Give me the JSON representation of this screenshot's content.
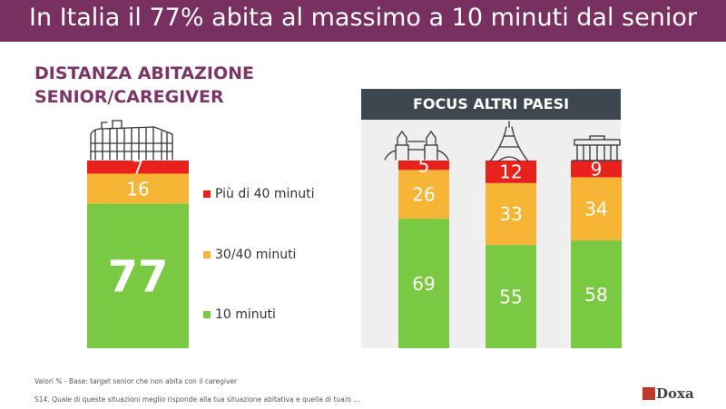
{
  "header": {
    "title": "In Italia il 77% abita al massimo a 10 minuti dal senior"
  },
  "italy": {
    "title_line1": "DISTANZA ABITAZIONE",
    "title_line2": "SENIOR/CAREGIVER"
  },
  "focus": {
    "title": "FOCUS ALTRI PAESI"
  },
  "legend": [
    {
      "label": "Più di 40 minuti",
      "color": "#e8211c"
    },
    {
      "label": "30/40 minuti",
      "color": "#f6b534"
    },
    {
      "label": "10 minuti",
      "color": "#7ac943"
    }
  ],
  "chart_data": {
    "type": "bar",
    "stacked": true,
    "unit": "%",
    "categories": [
      "Italia",
      "Regno Unito",
      "Francia",
      "Germania"
    ],
    "series": [
      {
        "name": "10 minuti",
        "color": "#7ac943",
        "values": [
          77,
          69,
          55,
          58
        ]
      },
      {
        "name": "30/40 minuti",
        "color": "#f6b534",
        "values": [
          16,
          26,
          33,
          34
        ]
      },
      {
        "name": "Più di 40 minuti",
        "color": "#e8211c",
        "values": [
          7,
          5,
          12,
          9
        ]
      }
    ],
    "ylim": [
      0,
      100
    ],
    "landmark_icons": [
      "colosseum-icon",
      "tower-bridge-icon",
      "eiffel-tower-icon",
      "brandenburg-gate-icon"
    ]
  },
  "footer": {
    "note1": "Valori %  - Base: target senior che non abita con il caregiver",
    "note2": "S14. Quale di queste situazioni meglio risponde alla tua situazione abitativa e quella di tua/o ..."
  },
  "logo": {
    "text": "Doxa"
  }
}
